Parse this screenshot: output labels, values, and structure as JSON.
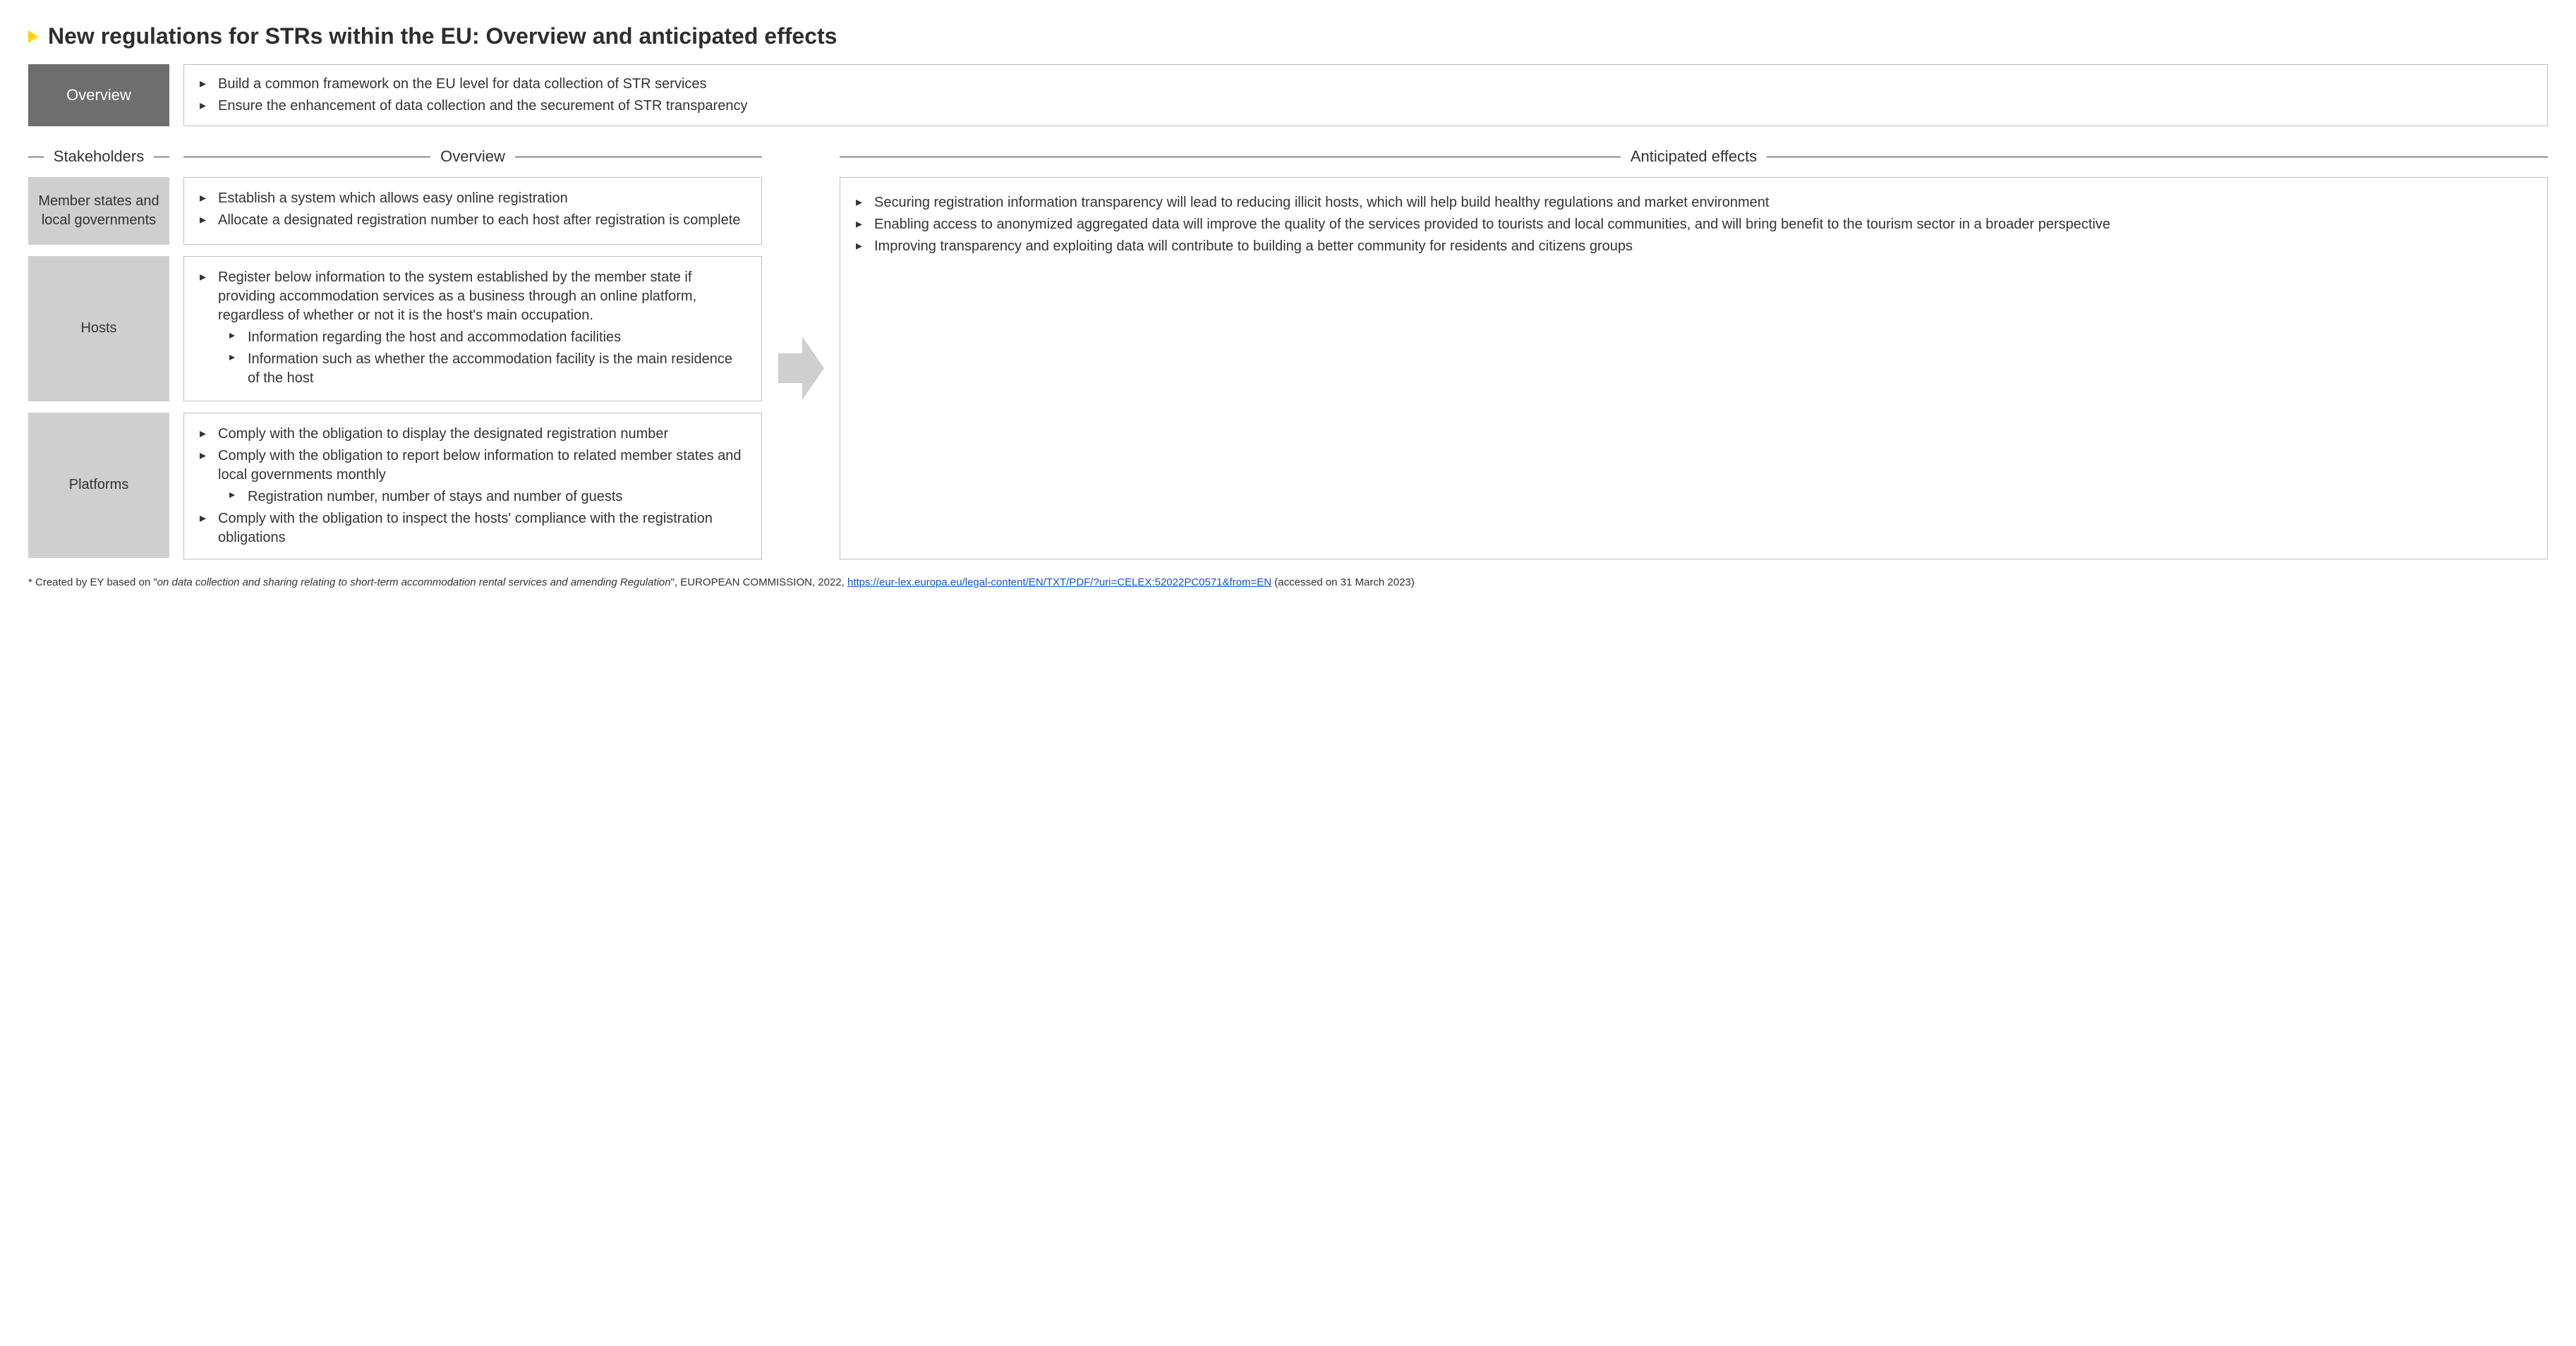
{
  "title": "New regulations for STRs within the EU: Overview and anticipated effects",
  "top": {
    "label": "Overview",
    "items": [
      "Build a common framework on the EU level for data collection of STR services",
      "Ensure the enhancement of data collection and the securement of STR transparency"
    ]
  },
  "columns": {
    "stakeholders": "Stakeholders",
    "overview": "Overview",
    "effects": "Anticipated effects"
  },
  "stakeholders": [
    {
      "label": "Member states and local governments"
    },
    {
      "label": "Hosts"
    },
    {
      "label": "Platforms"
    }
  ],
  "overview_boxes": [
    {
      "items": [
        {
          "text": "Establish a system which allows easy online registration"
        },
        {
          "text": "Allocate a designated registration number to each host  after registration is complete"
        }
      ]
    },
    {
      "items": [
        {
          "text": "Register below information to the system established by the member state if providing accommodation services as a business through an online platform, regardless of whether or not it is the host's main occupation.",
          "sub": [
            "Information regarding the host and accommodation facilities",
            "Information such as whether the accommodation facility is the main residence of the host"
          ]
        }
      ]
    },
    {
      "items": [
        {
          "text": "Comply with the obligation to display the designated registration number"
        },
        {
          "text": "Comply with the obligation to report below information to related member states and local governments monthly",
          "sub": [
            "Registration number, number of stays and number of guests"
          ]
        },
        {
          "text": "Comply with the obligation to inspect the hosts' compliance with the registration obligations"
        }
      ]
    }
  ],
  "effects": [
    "Securing registration information transparency will lead to reducing illicit hosts, which will help build healthy regulations and market environment",
    "Enabling access to anonymized aggregated data will improve the quality of the services provided to tourists and local communities, and will bring benefit to the tourism sector in a broader perspective",
    "Improving transparency and exploiting data will contribute to building a better community for residents and citizens groups"
  ],
  "footnote": {
    "prefix": "* Created by EY based on \"",
    "italic": "on data collection and sharing relating to short-term accommodation rental services and amending Regulation",
    "mid": "\", EUROPEAN COMMISSION, 2022, ",
    "link_text": "https://eur-lex.europa.eu/legal-content/EN/TXT/PDF/?uri=CELEX:52022PC0571&from=EN",
    "suffix": "  (accessed on 31 March 2023)"
  },
  "colors": {
    "accent_triangle": "#ffd400",
    "dark_gray": "#6e6e6e",
    "light_gray": "#cfcfcf",
    "border": "#bfbfbf",
    "text": "#333333",
    "link": "#1155cc",
    "background": "#ffffff"
  }
}
